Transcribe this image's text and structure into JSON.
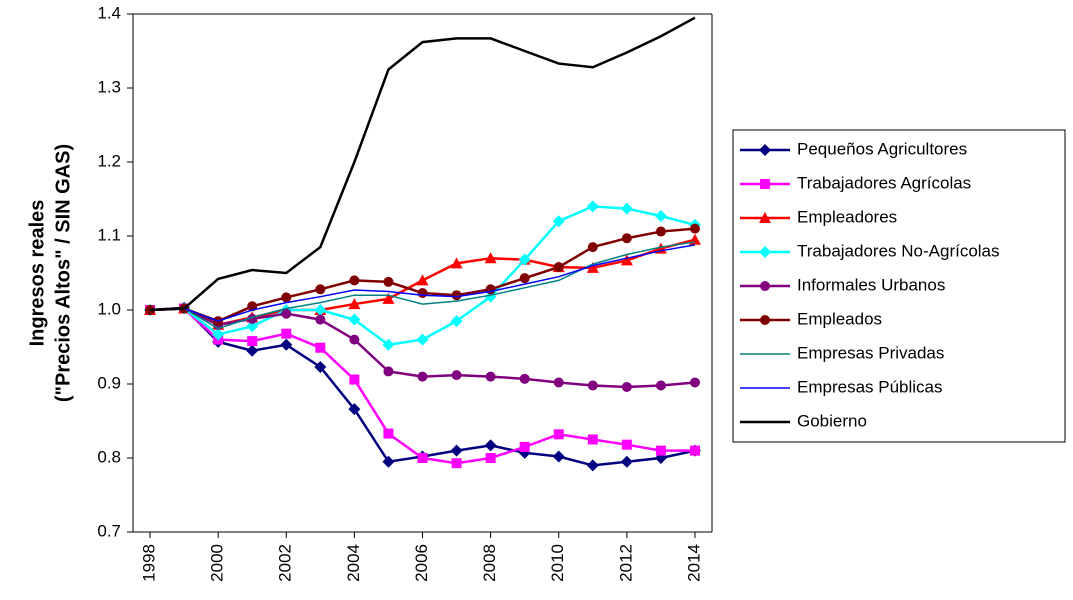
{
  "chart_data": {
    "type": "line",
    "ylabel": [
      "Ingresos reales",
      "(\"Precios Altos\" / SIN GAS)"
    ],
    "x": [
      1998,
      1999,
      2000,
      2001,
      2002,
      2003,
      2004,
      2005,
      2006,
      2007,
      2008,
      2009,
      2010,
      2011,
      2012,
      2013,
      2014
    ],
    "xlim": [
      1997.5,
      2014.5
    ],
    "xticks": [
      1998,
      2000,
      2002,
      2004,
      2006,
      2008,
      2010,
      2012,
      2014
    ],
    "ylim": [
      0.7,
      1.4
    ],
    "yticks": [
      0.7,
      0.8,
      0.9,
      {
        "value": 1.0,
        "label": "1.0"
      },
      1.1,
      1.2,
      1.3,
      1.4
    ],
    "legend": "right",
    "series": [
      {
        "name": "Pequeños Agricultores",
        "color": "#000080",
        "marker": "diamond",
        "values": [
          1.0,
          1.003,
          0.957,
          0.945,
          0.953,
          0.923,
          0.866,
          0.795,
          0.802,
          0.81,
          0.817,
          0.807,
          0.802,
          0.79,
          0.795,
          0.8,
          0.81
        ]
      },
      {
        "name": "Trabajadores Agrícolas",
        "color": "#ff00ff",
        "marker": "square",
        "values": [
          1.0,
          1.002,
          0.96,
          0.958,
          0.968,
          0.949,
          0.906,
          0.833,
          0.8,
          0.793,
          0.8,
          0.815,
          0.832,
          0.825,
          0.818,
          0.81,
          0.81
        ]
      },
      {
        "name": "Empleadores",
        "color": "#ff0000",
        "marker": "triangle",
        "values": [
          1.0,
          1.002,
          0.98,
          0.99,
          1.0,
          1.0,
          1.008,
          1.015,
          1.04,
          1.063,
          1.07,
          1.068,
          1.058,
          1.057,
          1.067,
          1.083,
          1.095
        ]
      },
      {
        "name": "Trabajadores No-Agrícolas",
        "color": "#00ffff",
        "marker": "diamond",
        "values": [
          1.0,
          1.002,
          0.967,
          0.978,
          1.0,
          1.0,
          0.987,
          0.953,
          0.96,
          0.985,
          1.018,
          1.068,
          1.12,
          1.14,
          1.137,
          1.127,
          1.115
        ]
      },
      {
        "name": "Informales Urbanos",
        "color": "#800080",
        "marker": "circle",
        "values": [
          1.0,
          1.002,
          0.98,
          0.988,
          0.995,
          0.987,
          0.96,
          0.917,
          0.91,
          0.912,
          0.91,
          0.907,
          0.902,
          0.898,
          0.896,
          0.898,
          0.902
        ]
      },
      {
        "name": "Empleados",
        "color": "#800000",
        "marker": "circle",
        "values": [
          1.0,
          1.002,
          0.985,
          1.005,
          1.017,
          1.028,
          1.04,
          1.038,
          1.023,
          1.02,
          1.028,
          1.043,
          1.058,
          1.085,
          1.097,
          1.106,
          1.11
        ]
      },
      {
        "name": "Empresas Privadas",
        "color": "#008080",
        "values": [
          1.0,
          1.002,
          0.975,
          0.99,
          1.002,
          1.01,
          1.02,
          1.02,
          1.008,
          1.012,
          1.02,
          1.03,
          1.04,
          1.062,
          1.075,
          1.085,
          1.092
        ]
      },
      {
        "name": "Empresas Públicas",
        "color": "#0000ff",
        "values": [
          1.0,
          1.002,
          0.985,
          1.0,
          1.01,
          1.018,
          1.027,
          1.025,
          1.02,
          1.018,
          1.025,
          1.035,
          1.045,
          1.06,
          1.07,
          1.08,
          1.088
        ]
      },
      {
        "name": "Gobierno",
        "color": "#000000",
        "values": [
          1.0,
          1.002,
          1.042,
          1.054,
          1.05,
          1.085,
          1.2,
          1.325,
          1.362,
          1.367,
          1.367,
          1.35,
          1.333,
          1.328,
          1.348,
          1.37,
          1.395
        ]
      }
    ]
  }
}
